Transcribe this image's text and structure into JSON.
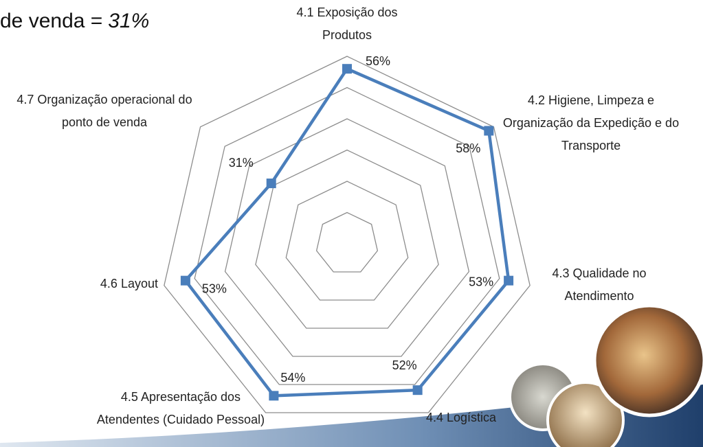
{
  "chart_data": {
    "type": "radar",
    "heading": {
      "text": "de venda =",
      "value": "31%"
    },
    "categories": [
      "4.1 Exposição dos Produtos",
      "4.2 Higiene, Limpeza e Organização da Expedição e do Transporte",
      "4.3 Qualidade no Atendimento",
      "4.4 Logística",
      "4.5 Apresentação dos Atendentes (Cuidado Pessoal)",
      "4.6 Layout",
      "4.7 Organização operacional do ponto de venda"
    ],
    "values": [
      56,
      58,
      53,
      52,
      54,
      53,
      31
    ],
    "value_labels": [
      "56%",
      "58%",
      "53%",
      "52%",
      "54%",
      "53%",
      "31%"
    ],
    "color": "#4a7ebb",
    "ylim": [
      0,
      60
    ],
    "yticks": [
      10,
      20,
      30,
      40,
      50,
      60
    ],
    "grid": true
  }
}
